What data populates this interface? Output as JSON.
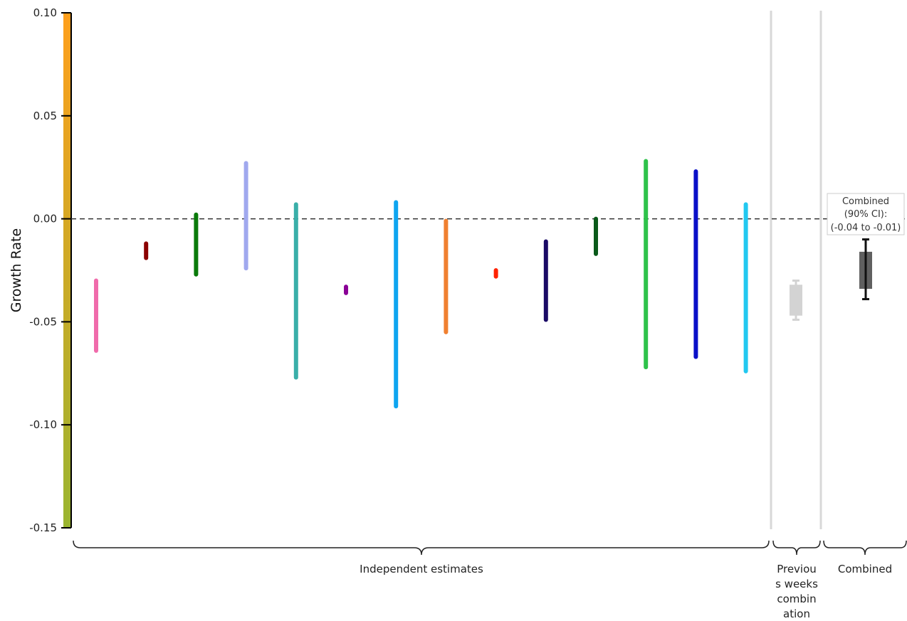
{
  "chart_data": {
    "type": "range",
    "ylabel": "Growth Rate",
    "ylim": [
      -0.15,
      0.1
    ],
    "yticks": [
      "0.10",
      "0.05",
      "0.00",
      "-0.05",
      "-0.10",
      "-0.15"
    ],
    "yticks_values": [
      0.1,
      0.05,
      0.0,
      -0.05,
      -0.1,
      -0.15
    ],
    "reference_line": 0.0,
    "estimates": [
      {
        "low": -0.064,
        "high": -0.03,
        "color": "#f06bab"
      },
      {
        "low": -0.019,
        "high": -0.012,
        "color": "#8b0000"
      },
      {
        "low": -0.027,
        "high": 0.002,
        "color": "#0a7a0a"
      },
      {
        "low": -0.024,
        "high": 0.027,
        "color": "#a0a8ee"
      },
      {
        "low": -0.077,
        "high": 0.007,
        "color": "#3aafa9"
      },
      {
        "low": -0.036,
        "high": -0.033,
        "color": "#8a0096"
      },
      {
        "low": -0.091,
        "high": 0.008,
        "color": "#0ea5f0"
      },
      {
        "low": -0.055,
        "high": -0.001,
        "color": "#f08030"
      },
      {
        "low": -0.028,
        "high": -0.025,
        "color": "#ff2200"
      },
      {
        "low": -0.049,
        "high": -0.011,
        "color": "#1a0a66"
      },
      {
        "low": -0.017,
        "high": 0.0,
        "color": "#0a5a1a"
      },
      {
        "low": -0.072,
        "high": 0.028,
        "color": "#2ec24a"
      },
      {
        "low": -0.067,
        "high": 0.023,
        "color": "#0a10c8"
      },
      {
        "low": -0.074,
        "high": 0.007,
        "color": "#22c8f0"
      }
    ],
    "previous_combination": {
      "low": -0.049,
      "high": -0.03,
      "box_low": -0.047,
      "box_high": -0.032,
      "color": "#d3d3d3"
    },
    "combined": {
      "low": -0.039,
      "high": -0.01,
      "box_low": -0.034,
      "box_high": -0.016,
      "box_color": "#606060",
      "whisker_color": "#111111",
      "annotation": [
        "Combined",
        "(90% CI):",
        "(-0.04 to -0.01)"
      ]
    },
    "groups": [
      {
        "label": "Independent estimates"
      },
      {
        "label": [
          "Previou",
          "s weeks",
          "combin",
          "ation"
        ]
      },
      {
        "label": "Combined"
      }
    ],
    "axis_gradient": [
      "#ff9f1c",
      "#9ab530"
    ]
  }
}
